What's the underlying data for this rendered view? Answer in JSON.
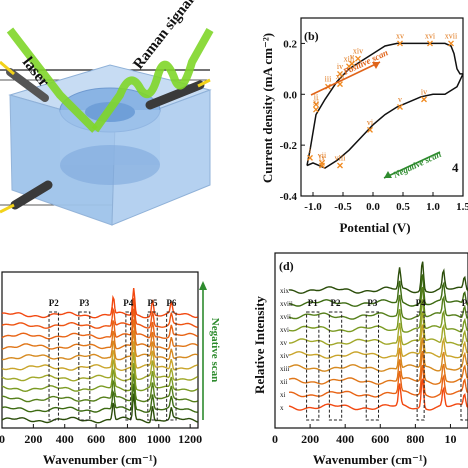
{
  "panel_a": {
    "laser_label": "laser",
    "raman_label": "Raman signals",
    "colors": {
      "laser": "#7fd629",
      "cell": "#9fc3ea",
      "electrode": "#f2d21a"
    }
  },
  "chart_data": [
    {
      "type": "line",
      "panel_label": "(b)",
      "xlabel": "Potential (V)",
      "ylabel": "Current density (mA cm⁻²)",
      "xlim": [
        -1.2,
        1.5
      ],
      "ylim": [
        -0.4,
        0.3
      ],
      "xticks": [
        "-1.0",
        "-0.5",
        "0.0",
        "0.5",
        "1.0",
        "1.5"
      ],
      "yticks": [
        "-0.4",
        "-0.2",
        "0.0",
        "0.2"
      ],
      "positive_scan_label": "Positive scan",
      "negative_scan_label": "Negative scan",
      "side_label": "4",
      "markers": [
        {
          "label": "i",
          "x": -1.05,
          "y": -0.25
        },
        {
          "label": "ii",
          "x": -0.95,
          "y": -0.04
        },
        {
          "label": "iii",
          "x": -0.75,
          "y": 0.03
        },
        {
          "label": "iv",
          "x": -0.55,
          "y": 0.08
        },
        {
          "label": "v",
          "x": -0.35,
          "y": 0.12
        },
        {
          "label": "vi",
          "x": -0.05,
          "y": -0.14
        },
        {
          "label": "vii",
          "x": -0.85,
          "y": -0.27
        },
        {
          "label": "viii",
          "x": -0.55,
          "y": -0.28
        },
        {
          "label": "ix",
          "x": -0.85,
          "y": -0.28
        },
        {
          "label": "v",
          "x": 0.45,
          "y": -0.05
        },
        {
          "label": "iv",
          "x": 0.85,
          "y": -0.02
        },
        {
          "label": "xi",
          "x": -0.95,
          "y": -0.06
        },
        {
          "label": "xii",
          "x": -0.55,
          "y": 0.04
        },
        {
          "label": "xiii",
          "x": -0.4,
          "y": 0.11
        },
        {
          "label": "xiv",
          "x": -0.25,
          "y": 0.14
        },
        {
          "label": "xv",
          "x": 0.45,
          "y": 0.2
        },
        {
          "label": "xvi",
          "x": 0.95,
          "y": 0.2
        },
        {
          "label": "xvii",
          "x": 1.3,
          "y": 0.2
        }
      ],
      "series": [
        {
          "x": [
            -1.1,
            -1.05,
            -0.95,
            -0.8,
            -0.6,
            -0.4,
            -0.2,
            0.0,
            0.2,
            0.4,
            0.6,
            0.8,
            1.0,
            1.2,
            1.3,
            1.35,
            1.4,
            1.45,
            1.5
          ],
          "y": [
            -0.28,
            -0.22,
            -0.08,
            -0.02,
            0.05,
            0.1,
            0.13,
            0.16,
            0.19,
            0.2,
            0.2,
            0.2,
            0.2,
            0.2,
            0.19,
            0.16,
            0.1,
            0.08,
            0.08
          ]
        },
        {
          "x": [
            1.5,
            1.4,
            1.2,
            1.0,
            0.8,
            0.6,
            0.4,
            0.2,
            0.0,
            -0.2,
            -0.4,
            -0.6,
            -0.8,
            -1.0,
            -1.1
          ],
          "y": [
            0.08,
            0.03,
            0.0,
            0.0,
            -0.01,
            -0.03,
            -0.05,
            -0.08,
            -0.12,
            -0.17,
            -0.22,
            -0.26,
            -0.29,
            -0.27,
            -0.28
          ]
        }
      ]
    },
    {
      "type": "line",
      "panel_label": "",
      "xlabel": "Wavenumber (cm⁻¹)",
      "ylabel": "",
      "xlim": [
        0,
        1250
      ],
      "xticks": [
        "0",
        "200",
        "400",
        "600",
        "800",
        "1000",
        "1200"
      ],
      "peak_labels": [
        "P2",
        "P3",
        "P4",
        "P5",
        "P6"
      ],
      "side_label": "Negative scan",
      "peaks": [
        {
          "center": 710,
          "height": 1.5
        },
        {
          "center": 840,
          "height": 2.2
        },
        {
          "center": 960,
          "height": 1.3
        },
        {
          "center": 1080,
          "height": 0.9
        }
      ],
      "series_count": 11,
      "colors": [
        "#2b4d0a",
        "#3d6b12",
        "#557f1a",
        "#7a9a22",
        "#a1a82a",
        "#c9a52b",
        "#d68a20",
        "#e07618",
        "#e86415",
        "#ee5412",
        "#f24810"
      ]
    },
    {
      "type": "line",
      "panel_label": "(d)",
      "xlabel": "Wavenumber (cm⁻¹)",
      "ylabel": "Relative Intensity",
      "xlim": [
        0,
        1100
      ],
      "xticks": [
        "0",
        "200",
        "400",
        "600",
        "800",
        "10"
      ],
      "peak_labels": [
        "P1",
        "P2",
        "P3",
        "P4",
        "P"
      ],
      "series_labels": [
        "xix",
        "xviii",
        "xvii",
        "xvi",
        "xv",
        "xiv",
        "xiii",
        "xii",
        "xi",
        "x"
      ],
      "colors": [
        "#2b4d0a",
        "#3d6b12",
        "#557f1a",
        "#7a9a22",
        "#a1a82a",
        "#c9a52b",
        "#d68a20",
        "#e07618",
        "#e86415",
        "#f24810"
      ]
    }
  ]
}
